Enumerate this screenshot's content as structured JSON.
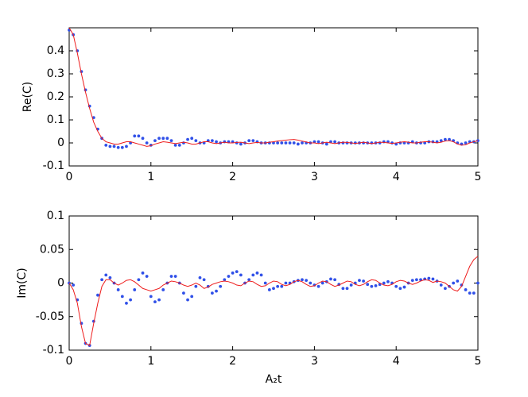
{
  "chart_data": [
    {
      "type": "line",
      "ylabel": "Re(C)",
      "xlim": [
        0,
        5
      ],
      "xticks": [
        0,
        1,
        2,
        3,
        4,
        5
      ],
      "ylim": [
        -0.1,
        0.5
      ],
      "yticks": [
        -0.1,
        0,
        0.1,
        0.2,
        0.3,
        0.4
      ],
      "x": [
        0,
        0.05,
        0.1,
        0.15,
        0.2,
        0.25,
        0.3,
        0.35,
        0.4,
        0.45,
        0.5,
        0.55,
        0.6,
        0.65,
        0.7,
        0.75,
        0.8,
        0.85,
        0.9,
        0.95,
        1,
        1.05,
        1.1,
        1.15,
        1.2,
        1.25,
        1.3,
        1.35,
        1.4,
        1.45,
        1.5,
        1.55,
        1.6,
        1.65,
        1.7,
        1.75,
        1.8,
        1.85,
        1.9,
        1.95,
        2,
        2.05,
        2.1,
        2.15,
        2.2,
        2.25,
        2.3,
        2.35,
        2.4,
        2.45,
        2.5,
        2.55,
        2.6,
        2.65,
        2.7,
        2.75,
        2.8,
        2.85,
        2.9,
        2.95,
        3,
        3.05,
        3.1,
        3.15,
        3.2,
        3.25,
        3.3,
        3.35,
        3.4,
        3.45,
        3.5,
        3.55,
        3.6,
        3.65,
        3.7,
        3.75,
        3.8,
        3.85,
        3.9,
        3.95,
        4,
        4.05,
        4.1,
        4.15,
        4.2,
        4.25,
        4.3,
        4.35,
        4.4,
        4.45,
        4.5,
        4.55,
        4.6,
        4.65,
        4.7,
        4.75,
        4.8,
        4.85,
        4.9,
        4.95,
        5
      ],
      "series": [
        {
          "style": "dots",
          "color": "#3050e8",
          "values": [
            0.49,
            0.47,
            0.4,
            0.31,
            0.23,
            0.16,
            0.11,
            0.06,
            0.02,
            -0.01,
            -0.015,
            -0.015,
            -0.02,
            -0.02,
            -0.015,
            0.0,
            0.03,
            0.03,
            0.02,
            0.0,
            -0.01,
            0.01,
            0.02,
            0.02,
            0.02,
            0.01,
            -0.01,
            -0.01,
            0.0,
            0.015,
            0.02,
            0.01,
            0.0,
            0.0,
            0.01,
            0.01,
            0.005,
            0.0,
            0.005,
            0.005,
            0.005,
            0.0,
            -0.005,
            0.0,
            0.01,
            0.01,
            0.005,
            0.0,
            0.0,
            0.0,
            0.0,
            0.0,
            0.0,
            0.0,
            0.0,
            0.0,
            -0.005,
            0.0,
            0.0,
            0.0,
            0.005,
            0.005,
            0.0,
            -0.005,
            0.005,
            0.005,
            0.0,
            0.0,
            0.0,
            0.0,
            0.0,
            0.0,
            0.0,
            0.0,
            0.0,
            0.0,
            0.0,
            0.005,
            0.005,
            0.0,
            -0.005,
            0.0,
            0.0,
            0.0,
            0.005,
            0.0,
            0.0,
            0.0,
            0.005,
            0.005,
            0.005,
            0.01,
            0.015,
            0.015,
            0.01,
            0.0,
            -0.005,
            0.0,
            0.005,
            0.005,
            0.01
          ]
        },
        {
          "style": "line",
          "color": "#ee1c1c",
          "values": [
            0.5,
            0.47,
            0.39,
            0.3,
            0.22,
            0.15,
            0.09,
            0.05,
            0.02,
            0.005,
            0.0,
            -0.005,
            -0.005,
            0.0,
            0.005,
            0.005,
            0.0,
            -0.005,
            -0.01,
            -0.015,
            -0.012,
            -0.005,
            0.0,
            0.005,
            0.003,
            0.0,
            -0.003,
            0.0,
            0.003,
            0.0,
            -0.005,
            -0.005,
            0.0,
            0.005,
            0.005,
            0.0,
            -0.003,
            0.0,
            0.003,
            0.0,
            0.0,
            0.002,
            0.003,
            0.0,
            -0.003,
            0.0,
            0.002,
            0.0,
            0.0,
            0.003,
            0.005,
            0.008,
            0.01,
            0.012,
            0.014,
            0.015,
            0.012,
            0.008,
            0.004,
            0.0,
            0.0,
            -0.003,
            0.0,
            0.003,
            0.0,
            -0.003,
            0.0,
            0.003,
            0.002,
            0.0,
            -0.002,
            0.0,
            0.003,
            0.0,
            -0.003,
            0.0,
            0.003,
            0.002,
            0.0,
            -0.002,
            0.0,
            0.003,
            0.005,
            0.003,
            0.0,
            0.0,
            0.003,
            0.005,
            0.005,
            0.003,
            0.0,
            0.003,
            0.008,
            0.01,
            0.005,
            -0.005,
            -0.01,
            -0.008,
            0.0,
            0.005,
            0.01
          ]
        }
      ]
    },
    {
      "type": "line",
      "ylabel": "Im(C)",
      "xlabel": "A₂t",
      "xlim": [
        0,
        5
      ],
      "xticks": [
        0,
        1,
        2,
        3,
        4,
        5
      ],
      "ylim": [
        -0.1,
        0.1
      ],
      "yticks": [
        -0.1,
        -0.05,
        0,
        0.05,
        0.1
      ],
      "x": [
        0,
        0.05,
        0.1,
        0.15,
        0.2,
        0.25,
        0.3,
        0.35,
        0.4,
        0.45,
        0.5,
        0.55,
        0.6,
        0.65,
        0.7,
        0.75,
        0.8,
        0.85,
        0.9,
        0.95,
        1,
        1.05,
        1.1,
        1.15,
        1.2,
        1.25,
        1.3,
        1.35,
        1.4,
        1.45,
        1.5,
        1.55,
        1.6,
        1.65,
        1.7,
        1.75,
        1.8,
        1.85,
        1.9,
        1.95,
        2,
        2.05,
        2.1,
        2.15,
        2.2,
        2.25,
        2.3,
        2.35,
        2.4,
        2.45,
        2.5,
        2.55,
        2.6,
        2.65,
        2.7,
        2.75,
        2.8,
        2.85,
        2.9,
        2.95,
        3,
        3.05,
        3.1,
        3.15,
        3.2,
        3.25,
        3.3,
        3.35,
        3.4,
        3.45,
        3.5,
        3.55,
        3.6,
        3.65,
        3.7,
        3.75,
        3.8,
        3.85,
        3.9,
        3.95,
        4,
        4.05,
        4.1,
        4.15,
        4.2,
        4.25,
        4.3,
        4.35,
        4.4,
        4.45,
        4.5,
        4.55,
        4.6,
        4.65,
        4.7,
        4.75,
        4.8,
        4.85,
        4.9,
        4.95,
        5
      ],
      "series": [
        {
          "style": "dots",
          "color": "#3050e8",
          "values": [
            0.0,
            -0.003,
            -0.025,
            -0.06,
            -0.09,
            -0.093,
            -0.057,
            -0.018,
            0.005,
            0.012,
            0.008,
            0.0,
            -0.01,
            -0.02,
            -0.03,
            -0.025,
            -0.01,
            0.005,
            0.015,
            0.01,
            -0.02,
            -0.028,
            -0.025,
            -0.01,
            0.0,
            0.01,
            0.01,
            0.0,
            -0.015,
            -0.025,
            -0.02,
            -0.005,
            0.008,
            0.005,
            -0.005,
            -0.015,
            -0.012,
            -0.005,
            0.005,
            0.01,
            0.015,
            0.017,
            0.012,
            0.0,
            0.005,
            0.012,
            0.015,
            0.012,
            0.0,
            -0.01,
            -0.008,
            -0.005,
            -0.005,
            0.0,
            0.0,
            0.002,
            0.004,
            0.005,
            0.004,
            0.0,
            -0.003,
            -0.005,
            0.0,
            0.002,
            0.006,
            0.005,
            -0.002,
            -0.008,
            -0.008,
            -0.003,
            0.0,
            0.004,
            0.003,
            -0.002,
            -0.005,
            -0.004,
            -0.002,
            0.0,
            0.002,
            0.0,
            -0.005,
            -0.008,
            -0.006,
            0.0,
            0.004,
            0.005,
            0.005,
            0.006,
            0.007,
            0.006,
            0.003,
            -0.003,
            -0.008,
            -0.005,
            0.0,
            0.003,
            -0.003,
            -0.01,
            -0.015,
            -0.015,
            0.0
          ]
        },
        {
          "style": "line",
          "color": "#ee1c1c",
          "values": [
            0.0,
            -0.01,
            -0.03,
            -0.065,
            -0.09,
            -0.093,
            -0.06,
            -0.03,
            -0.005,
            0.005,
            0.005,
            0.0,
            -0.003,
            0.0,
            0.004,
            0.005,
            0.002,
            -0.003,
            -0.008,
            -0.01,
            -0.012,
            -0.01,
            -0.008,
            -0.003,
            0.0,
            0.003,
            0.002,
            0.0,
            -0.003,
            -0.005,
            -0.003,
            0.0,
            -0.003,
            -0.008,
            -0.006,
            -0.002,
            0.0,
            0.002,
            0.003,
            0.002,
            0.0,
            -0.003,
            -0.004,
            0.0,
            0.003,
            0.002,
            -0.002,
            -0.005,
            -0.004,
            0.0,
            0.003,
            0.002,
            -0.002,
            -0.004,
            -0.002,
            0.002,
            0.004,
            0.002,
            -0.002,
            -0.005,
            -0.004,
            0.0,
            0.003,
            0.002,
            -0.002,
            -0.005,
            -0.003,
            0.0,
            0.003,
            0.002,
            -0.002,
            -0.004,
            -0.002,
            0.002,
            0.005,
            0.004,
            0.0,
            -0.003,
            -0.004,
            -0.002,
            0.002,
            0.004,
            0.003,
            0.0,
            -0.002,
            0.0,
            0.003,
            0.005,
            0.004,
            0.001,
            0.003,
            0.002,
            0.0,
            -0.005,
            -0.01,
            -0.012,
            -0.005,
            0.01,
            0.025,
            0.035,
            0.04
          ]
        }
      ]
    }
  ]
}
